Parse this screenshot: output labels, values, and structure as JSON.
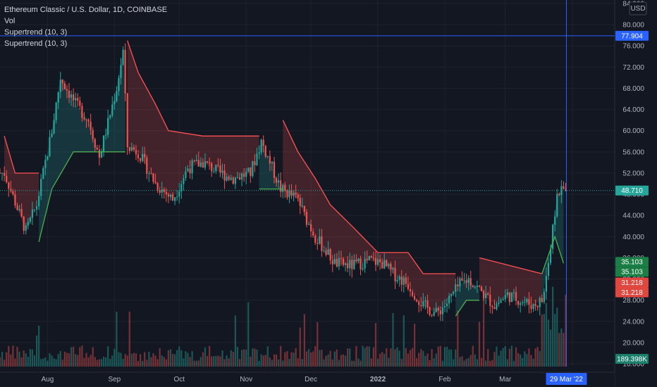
{
  "header": {
    "title": "Ethereum Classic / U.S. Dollar, 1D, COINBASE",
    "indicators": [
      "Vol",
      "Supertrend (10, 3)",
      "Supertrend (10, 3)"
    ],
    "currency": "USD"
  },
  "colors": {
    "background": "#131722",
    "grid": "#1e222d",
    "axis_text": "#b2b5be",
    "up": "#26a69a",
    "down": "#ef5350",
    "uptrend_line": "#4caf50",
    "downtrend_line": "#ff5252",
    "crosshair": "#2962ff"
  },
  "price_axis": {
    "ticks": [
      "84.000",
      "80.000",
      "76.000",
      "72.000",
      "68.000",
      "64.000",
      "60.000",
      "56.000",
      "52.000",
      "48.000",
      "44.000",
      "40.000",
      "36.000",
      "32.000",
      "28.000",
      "24.000",
      "20.000",
      "16.000"
    ]
  },
  "price_labels": {
    "crosshair": "77.904",
    "last": "48.710",
    "st_up_1": "35.103",
    "st_up_2": "35.103",
    "st_down_1": "31.218",
    "st_down_2": "31.218",
    "volume": "189.398K"
  },
  "time_axis": {
    "ticks": [
      "Aug",
      "Sep",
      "Oct",
      "Nov",
      "Dec",
      "2022",
      "Feb",
      "Mar",
      "Ma"
    ],
    "crosshair": "29 Mar '22"
  },
  "chart_data": {
    "type": "candlestick",
    "ylim": [
      16,
      84
    ],
    "log_scale": false,
    "grid": true,
    "crosshair": {
      "date": "29 Mar '22",
      "price": 77.904
    },
    "last_price": 48.71,
    "supertrend_up": 35.103,
    "supertrend_down": 31.218,
    "volume_label": "189.398K",
    "price_path": [
      [
        "2021-07-12",
        52
      ],
      [
        "2021-07-22",
        41
      ],
      [
        "2021-07-27",
        46
      ],
      [
        "2021-08-03",
        60
      ],
      [
        "2021-08-07",
        70
      ],
      [
        "2021-08-14",
        65
      ],
      [
        "2021-08-20",
        62
      ],
      [
        "2021-08-25",
        55
      ],
      [
        "2021-09-02",
        68
      ],
      [
        "2021-09-05",
        75
      ],
      [
        "2021-09-07",
        57
      ],
      [
        "2021-09-12",
        56
      ],
      [
        "2021-09-20",
        50
      ],
      [
        "2021-09-28",
        47
      ],
      [
        "2021-10-05",
        53
      ],
      [
        "2021-10-12",
        54
      ],
      [
        "2021-10-20",
        52
      ],
      [
        "2021-10-26",
        51
      ],
      [
        "2021-11-03",
        52
      ],
      [
        "2021-11-08",
        58
      ],
      [
        "2021-11-12",
        54
      ],
      [
        "2021-11-17",
        49
      ],
      [
        "2021-11-25",
        47
      ],
      [
        "2021-11-28",
        44
      ],
      [
        "2021-12-03",
        40
      ],
      [
        "2021-12-12",
        35
      ],
      [
        "2021-12-20",
        34.5
      ],
      [
        "2021-12-28",
        35.5
      ],
      [
        "2022-01-03",
        35
      ],
      [
        "2022-01-08",
        33
      ],
      [
        "2022-01-15",
        31
      ],
      [
        "2022-01-22",
        27
      ],
      [
        "2022-01-28",
        25.5
      ],
      [
        "2022-02-02",
        27.5
      ],
      [
        "2022-02-08",
        31
      ],
      [
        "2022-02-12",
        32
      ],
      [
        "2022-02-17",
        30
      ],
      [
        "2022-02-24",
        27
      ],
      [
        "2022-03-02",
        29
      ],
      [
        "2022-03-08",
        28
      ],
      [
        "2022-03-14",
        27
      ],
      [
        "2022-03-18",
        28
      ],
      [
        "2022-03-22",
        38
      ],
      [
        "2022-03-25",
        48
      ],
      [
        "2022-03-29",
        49
      ]
    ],
    "supertrend": {
      "down_segments": [
        [
          [
            "2021-07-12",
            59
          ],
          [
            "2021-07-17",
            52
          ],
          [
            "2021-07-28",
            52
          ]
        ],
        [
          [
            "2021-09-07",
            77
          ],
          [
            "2021-09-12",
            71
          ],
          [
            "2021-09-20",
            65
          ],
          [
            "2021-09-26",
            60
          ],
          [
            "2021-10-12",
            59
          ],
          [
            "2021-11-07",
            59
          ]
        ],
        [
          [
            "2021-11-18",
            62
          ],
          [
            "2021-11-25",
            56
          ],
          [
            "2021-12-03",
            51
          ],
          [
            "2021-12-10",
            46
          ],
          [
            "2021-12-20",
            42
          ],
          [
            "2022-01-01",
            37
          ],
          [
            "2022-01-15",
            37
          ],
          [
            "2022-01-22",
            33
          ],
          [
            "2022-02-06",
            33
          ]
        ],
        [
          [
            "2022-02-17",
            36
          ],
          [
            "2022-03-18",
            33
          ]
        ]
      ],
      "up_segments": [
        [
          [
            "2021-07-28",
            39
          ],
          [
            "2021-08-03",
            49
          ],
          [
            "2021-08-13",
            56
          ],
          [
            "2021-09-06",
            56
          ]
        ],
        [
          [
            "2021-11-07",
            49
          ],
          [
            "2021-11-18",
            49
          ]
        ],
        [
          [
            "2022-02-06",
            25
          ],
          [
            "2022-02-11",
            28
          ],
          [
            "2022-02-17",
            28
          ]
        ],
        [
          [
            "2022-03-18",
            33
          ],
          [
            "2022-03-24",
            40
          ],
          [
            "2022-03-28",
            35
          ]
        ]
      ]
    }
  }
}
